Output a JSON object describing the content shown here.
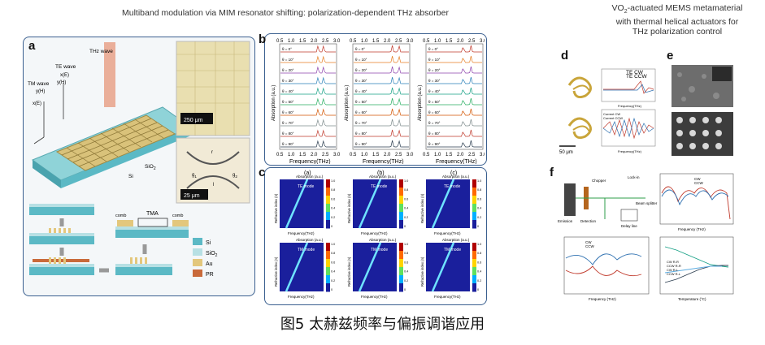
{
  "header": {
    "main_title": "Multiband modulation via MIM resonator shifting: polarization-dependent THz absorber",
    "right_title_line1": "VO",
    "right_title_sub": "2",
    "right_title_line1_rest": "-actuated MEMS metamaterial",
    "right_title_line2": "with thermal helical actuators for",
    "right_title_line3": "THz polarization control"
  },
  "panels": {
    "a": "a",
    "b": "b",
    "c": "c",
    "d": "d",
    "e": "e",
    "f": "f"
  },
  "panel_a": {
    "labels": {
      "te_wave": "TE wave",
      "thz_wave": "THz wave",
      "tm_wave": "TM wave",
      "y_h": "y(H)",
      "x_e": "x(E)",
      "x_e2": "x(E)",
      "y_h2": "y(H)",
      "si": "Si",
      "sio2": "SiO",
      "sio2_sub": "2",
      "scale1": "250 μm",
      "scale2": "25 μm",
      "r": "r",
      "g1": "g",
      "g1_sub": "1",
      "g2": "g",
      "g2_sub": "2",
      "l": "l",
      "tma": "TMA",
      "comb1": "comb",
      "comb2": "comb"
    },
    "legend": [
      {
        "label": "Si",
        "color": "#5bb9c5"
      },
      {
        "label": "SiO",
        "sub": "2",
        "color": "#b7e0e4"
      },
      {
        "label": "Au",
        "color": "#e3c77c"
      },
      {
        "label": "PR",
        "color": "#c96a3a"
      }
    ]
  },
  "panel_b": {
    "xlabel": "Frequency(THz)",
    "ylabel": "Absorption (a.u.)",
    "xticks": [
      "0.5",
      "1.0",
      "1.5",
      "2.0",
      "2.5",
      "3.0"
    ],
    "col1_rows": [
      "θ = 0°",
      "θ = 10°",
      "θ = 20°",
      "θ = 30°",
      "θ = 40°",
      "θ = 50°",
      "θ = 60°",
      "θ = 70°",
      "θ = 80°",
      "θ = 90°"
    ],
    "col2_rows": [
      "θ = 0°",
      "θ = 10°",
      "θ = 20°",
      "θ = 30°",
      "θ = 40°",
      "θ = 50°",
      "θ = 60°",
      "θ = 70°",
      "θ = 80°",
      "θ = 90°"
    ],
    "col3_rows": [
      "θ = 0°",
      "θ = 10°",
      "θ = 20°",
      "θ = 30°",
      "θ = 40°",
      "θ = 50°",
      "θ = 60°",
      "θ = 70°",
      "θ = 80°",
      "θ = 90°"
    ],
    "colors": [
      "#c0392b",
      "#e67e22",
      "#8e44ad",
      "#2980b9",
      "#16a085",
      "#27ae60",
      "#d35400",
      "#7f8c8d",
      "#c0392b",
      "#2c3e50"
    ]
  },
  "panel_c": {
    "col_titles": [
      "(a)",
      "(b)",
      "(c)"
    ],
    "top_mode": "TE mode",
    "bottom_mode": "TM mode",
    "absorption_label": "Absorption (a.u.)",
    "xlabel": "Frequency(THz)",
    "ylabel": "Refractive index (n)",
    "cbar_ticks": [
      "1.0",
      "0.8",
      "0.6",
      "0.4",
      "0.2",
      "0"
    ]
  },
  "panel_d": {
    "legend_top": [
      "TE CW",
      "TE CCW"
    ],
    "legend_bottom": [
      "Current CW",
      "Current CCW"
    ],
    "xlabel": "Frequency(THz)",
    "scale": "50 μm"
  },
  "panel_f": {
    "labels": [
      "Chopper",
      "Delay line",
      "Detection",
      "Emission",
      "Lock-in",
      "Beam splitter"
    ],
    "legend_tr": [
      "CW",
      "CCW"
    ],
    "legend_bl": [
      "CW",
      "CCW"
    ],
    "legend_br": [
      "CW R-R",
      "CCW R-R",
      "CW R-L",
      "CCW R-L"
    ],
    "xlabel_freq": "Frequency (THz)",
    "xlabel_temp": "Temperature (°C)"
  },
  "caption": "图5 太赫兹频率与偏振调谐应用"
}
